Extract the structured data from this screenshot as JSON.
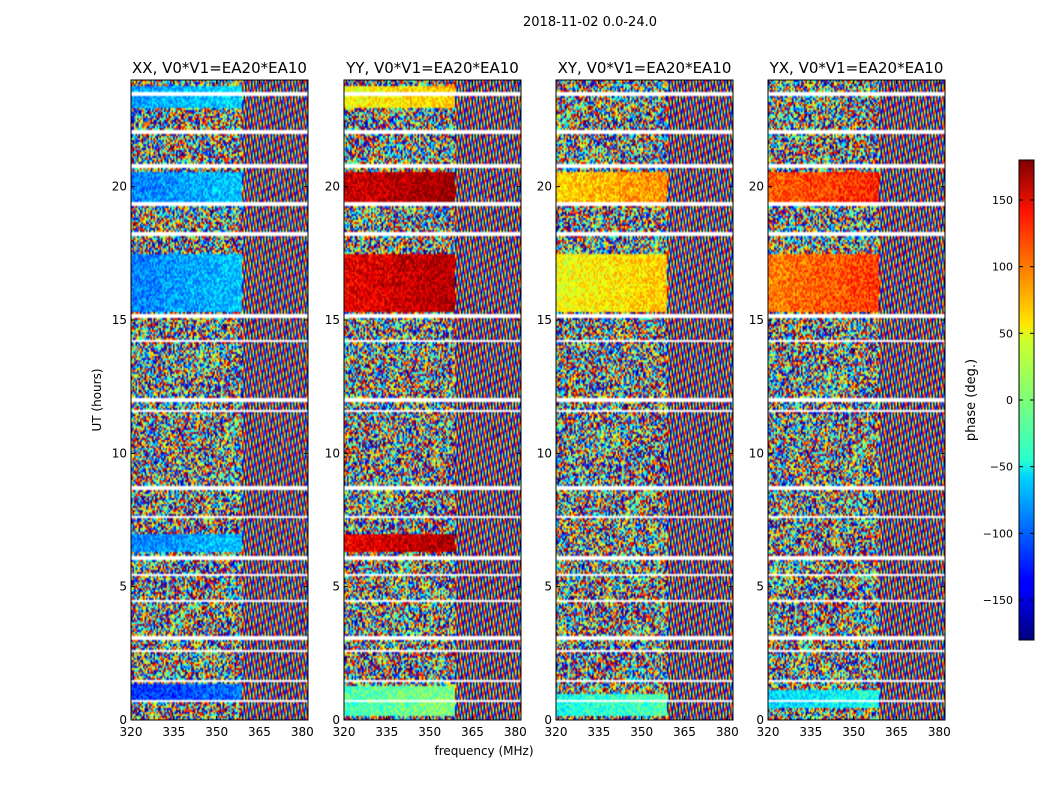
{
  "figure": {
    "suptitle": "2018-11-02 0.0-24.0"
  },
  "chart_data": [
    {
      "type": "heatmap",
      "title": "XX, V0*V1=EA20*EA10",
      "xlabel": "",
      "ylabel": "UT (hours)",
      "xlim": [
        320,
        382
      ],
      "ylim": [
        0,
        24
      ],
      "xticks": [
        "320",
        "335",
        "350",
        "365",
        "380"
      ],
      "yticks": [
        "0",
        "5",
        "10",
        "15",
        "20"
      ],
      "colormap": "jet",
      "value_label": "phase (deg.)"
    },
    {
      "type": "heatmap",
      "title": "YY, V0*V1=EA20*EA10",
      "xlabel": "frequency (MHz)",
      "ylabel": "",
      "xlim": [
        320,
        382
      ],
      "ylim": [
        0,
        24
      ],
      "xticks": [
        "320",
        "335",
        "350",
        "365",
        "380"
      ],
      "yticks": [
        "0",
        "5",
        "10",
        "15",
        "20"
      ],
      "colormap": "jet",
      "value_label": "phase (deg.)"
    },
    {
      "type": "heatmap",
      "title": "XY, V0*V1=EA20*EA10",
      "xlabel": "",
      "ylabel": "",
      "xlim": [
        320,
        382
      ],
      "ylim": [
        0,
        24
      ],
      "xticks": [
        "320",
        "335",
        "350",
        "365",
        "380"
      ],
      "yticks": [
        "0",
        "5",
        "10",
        "15",
        "20"
      ],
      "colormap": "jet",
      "value_label": "phase (deg.)"
    },
    {
      "type": "heatmap",
      "title": "YX, V0*V1=EA20*EA10",
      "xlabel": "",
      "ylabel": "",
      "xlim": [
        320,
        382
      ],
      "ylim": [
        0,
        24
      ],
      "xticks": [
        "320",
        "335",
        "350",
        "365",
        "380"
      ],
      "yticks": [
        "0",
        "5",
        "10",
        "15",
        "20"
      ],
      "colormap": "jet",
      "value_label": "phase (deg.)"
    }
  ],
  "colorbar": {
    "label": "phase (deg.)",
    "range": [
      -180,
      180
    ],
    "ticks": [
      "150",
      "100",
      "50",
      "0",
      "−50",
      "−100",
      "−150"
    ],
    "tick_values": [
      150,
      100,
      50,
      0,
      -50,
      -100,
      -150
    ],
    "colormap": "jet"
  }
}
